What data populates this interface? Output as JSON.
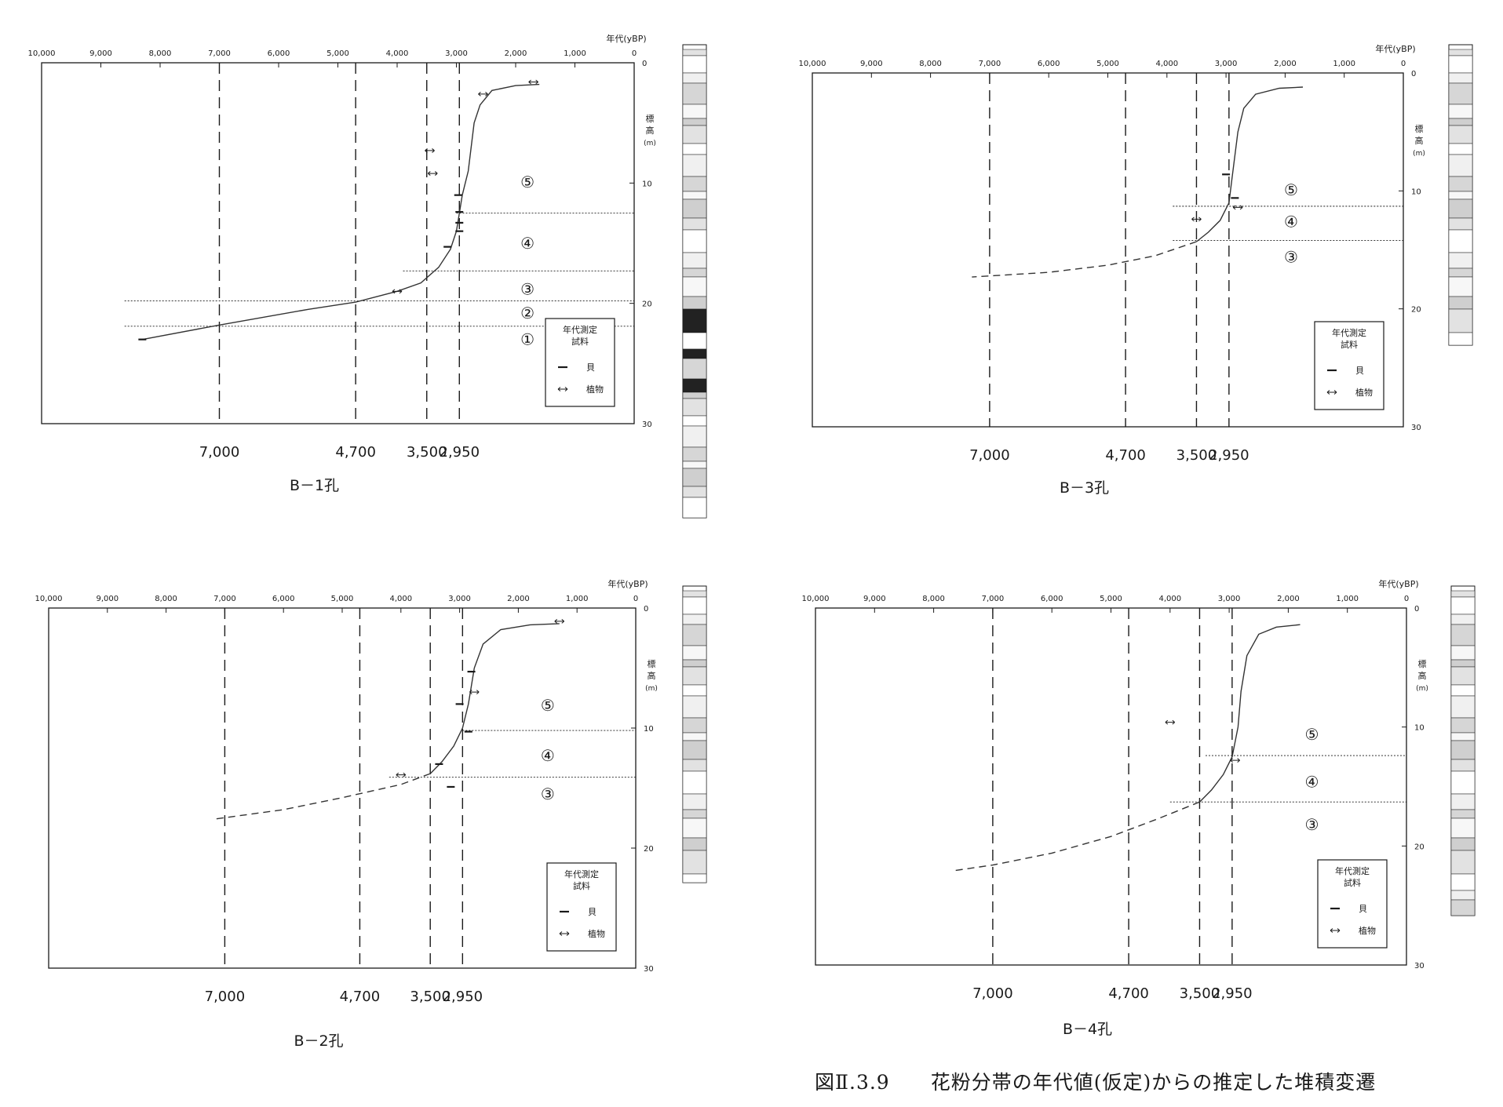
{
  "caption": "図Ⅱ.3.9　　花粉分帯の年代値(仮定)からの推定した堆積変遷",
  "colors": {
    "ink": "#1a1a1a",
    "background": "#ffffff"
  },
  "chart_data": [
    {
      "type": "line",
      "title": "B－1孔",
      "xlabel": "年代(yBP)",
      "ylabel": "標高(m)",
      "xlim": [
        10000,
        0
      ],
      "ylim": [
        0,
        30
      ],
      "x_ticks": [
        10000,
        9000,
        8000,
        7000,
        6000,
        5000,
        4000,
        3000,
        2000,
        1000,
        0
      ],
      "x_tick_labels": [
        "10,000",
        "9,000",
        "8,000",
        "7,000",
        "6,000",
        "5,000",
        "4,000",
        "3,000",
        "2,000",
        "1,000",
        "0"
      ],
      "y_ticks": [
        0,
        10,
        20,
        30
      ],
      "y_tick_labels": [
        "0",
        "10",
        "20",
        "30"
      ],
      "boundary_ages": [
        7000,
        4700,
        3500,
        2950
      ],
      "boundary_labels": [
        "7,000",
        "4,700",
        "3,500",
        "2,950"
      ],
      "curve": {
        "solid": [
          [
            1600,
            1.8
          ],
          [
            2000,
            1.9
          ],
          [
            2400,
            2.3
          ],
          [
            2600,
            3.5
          ],
          [
            2700,
            5
          ],
          [
            2800,
            9
          ],
          [
            2900,
            11
          ],
          [
            2950,
            12.5
          ],
          [
            3000,
            14
          ],
          [
            3100,
            15.5
          ],
          [
            3300,
            17
          ],
          [
            3600,
            18.3
          ],
          [
            4000,
            19
          ],
          [
            4700,
            19.9
          ],
          [
            5500,
            20.5
          ],
          [
            7000,
            21.8
          ],
          [
            8300,
            23
          ]
        ],
        "dashed": []
      },
      "samples": [
        {
          "kind": "shell",
          "age": 2970,
          "depth": 11
        },
        {
          "kind": "shell",
          "age": 2950,
          "depth": 12.4
        },
        {
          "kind": "shell",
          "age": 2950,
          "depth": 13.3
        },
        {
          "kind": "shell",
          "age": 2950,
          "depth": 14
        },
        {
          "kind": "shell",
          "age": 3150,
          "depth": 15.3
        },
        {
          "kind": "shell",
          "age": 8300,
          "depth": 23
        },
        {
          "kind": "plant",
          "age": 1700,
          "depth": 1.6
        },
        {
          "kind": "plant",
          "age": 2550,
          "depth": 2.6
        },
        {
          "kind": "plant",
          "age": 3450,
          "depth": 7.3
        },
        {
          "kind": "plant",
          "age": 3400,
          "depth": 9.2
        },
        {
          "kind": "plant",
          "age": 4000,
          "depth": 19
        }
      ],
      "zones": [
        {
          "label": "⑤",
          "depth": 9.9,
          "age": 1800,
          "line_depth": 12.5,
          "line_start": 3000
        },
        {
          "label": "④",
          "depth": 15,
          "age": 1800,
          "line_depth": 17.3,
          "line_start": 3900
        },
        {
          "label": "③",
          "depth": 18.8,
          "age": 1800,
          "line_depth": 19.8,
          "line_start": 8600
        },
        {
          "label": "②",
          "depth": 20.8,
          "age": 1800,
          "line_depth": 21.9,
          "line_start": 8600
        },
        {
          "label": "①",
          "depth": 23,
          "age": 1800
        }
      ],
      "legend": {
        "title": "年代測定\n試料",
        "shell": "貝",
        "plant": "植物",
        "position": "lower-right"
      }
    },
    {
      "type": "line",
      "title": "B－3孔",
      "xlabel": "年代(yBP)",
      "ylabel": "標高(m)",
      "xlim": [
        10000,
        0
      ],
      "ylim": [
        0,
        30
      ],
      "x_ticks": [
        10000,
        9000,
        8000,
        7000,
        6000,
        5000,
        4000,
        3000,
        2000,
        1000,
        0
      ],
      "x_tick_labels": [
        "10,000",
        "9,000",
        "8,000",
        "7,000",
        "6,000",
        "5,000",
        "4,000",
        "3,000",
        "2,000",
        "1,000",
        "0"
      ],
      "y_ticks": [
        0,
        10,
        20,
        30
      ],
      "y_tick_labels": [
        "0",
        "10",
        "20",
        "30"
      ],
      "boundary_ages": [
        7000,
        4700,
        3500,
        2950
      ],
      "boundary_labels": [
        "7,000",
        "4,700",
        "3,500",
        "2,950"
      ],
      "curve": {
        "solid": [
          [
            1700,
            1.2
          ],
          [
            2100,
            1.3
          ],
          [
            2500,
            1.8
          ],
          [
            2700,
            3
          ],
          [
            2800,
            5
          ],
          [
            2900,
            9
          ],
          [
            2950,
            11
          ],
          [
            3100,
            12.5
          ],
          [
            3300,
            13.5
          ],
          [
            3500,
            14.3
          ]
        ],
        "dashed": [
          [
            3500,
            14.3
          ],
          [
            4200,
            15.5
          ],
          [
            5000,
            16.3
          ],
          [
            6000,
            16.9
          ],
          [
            7300,
            17.3
          ]
        ]
      },
      "samples": [
        {
          "kind": "shell",
          "age": 3000,
          "depth": 8.6
        },
        {
          "kind": "shell",
          "age": 2850,
          "depth": 10.6
        },
        {
          "kind": "plant",
          "age": 2800,
          "depth": 11.4
        },
        {
          "kind": "plant",
          "age": 3500,
          "depth": 12.4
        }
      ],
      "zones": [
        {
          "label": "⑤",
          "depth": 9.9,
          "age": 1900,
          "line_depth": 11.3,
          "line_start": 3900
        },
        {
          "label": "④",
          "depth": 12.6,
          "age": 1900,
          "line_depth": 14.2,
          "line_start": 3900
        },
        {
          "label": "③",
          "depth": 15.6,
          "age": 1900
        }
      ],
      "legend": {
        "title": "年代測定\n試料",
        "shell": "貝",
        "plant": "植物",
        "position": "lower-right"
      }
    },
    {
      "type": "line",
      "title": "B－2孔",
      "xlabel": "年代(yBP)",
      "ylabel": "標高(m)",
      "xlim": [
        10000,
        0
      ],
      "ylim": [
        0,
        30
      ],
      "x_ticks": [
        10000,
        9000,
        8000,
        7000,
        6000,
        5000,
        4000,
        3000,
        2000,
        1000,
        0
      ],
      "x_tick_labels": [
        "10,000",
        "9,000",
        "8,000",
        "7,000",
        "6,000",
        "5,000",
        "4,000",
        "3,000",
        "2,000",
        "1,000",
        "0"
      ],
      "y_ticks": [
        0,
        10,
        20,
        30
      ],
      "y_tick_labels": [
        "0",
        "10",
        "20",
        "30"
      ],
      "boundary_ages": [
        7000,
        4700,
        3500,
        2950
      ],
      "boundary_labels": [
        "7,000",
        "4,700",
        "3,500",
        "2,950"
      ],
      "curve": {
        "solid": [
          [
            1300,
            1.3
          ],
          [
            1800,
            1.4
          ],
          [
            2300,
            1.8
          ],
          [
            2600,
            3
          ],
          [
            2750,
            5
          ],
          [
            2850,
            8
          ],
          [
            2950,
            10
          ],
          [
            3100,
            11.5
          ],
          [
            3300,
            12.8
          ],
          [
            3500,
            13.8
          ]
        ],
        "dashed": [
          [
            3500,
            13.8
          ],
          [
            4000,
            14.7
          ],
          [
            5000,
            15.8
          ],
          [
            6000,
            16.8
          ],
          [
            7200,
            17.6
          ]
        ]
      },
      "samples": [
        {
          "kind": "shell",
          "age": 2800,
          "depth": 5.3
        },
        {
          "kind": "shell",
          "age": 3000,
          "depth": 8
        },
        {
          "kind": "shell",
          "age": 2850,
          "depth": 10.3
        },
        {
          "kind": "shell",
          "age": 3350,
          "depth": 13
        },
        {
          "kind": "shell",
          "age": 3150,
          "depth": 14.9
        },
        {
          "kind": "plant",
          "age": 1300,
          "depth": 1.1
        },
        {
          "kind": "plant",
          "age": 2750,
          "depth": 7
        },
        {
          "kind": "plant",
          "age": 4000,
          "depth": 13.9
        }
      ],
      "zones": [
        {
          "label": "⑤",
          "depth": 8.1,
          "age": 1500,
          "line_depth": 10.2,
          "line_start": 2950
        },
        {
          "label": "④",
          "depth": 12.3,
          "age": 1500,
          "line_depth": 14.1,
          "line_start": 4200
        },
        {
          "label": "③",
          "depth": 15.5,
          "age": 1500
        }
      ],
      "legend": {
        "title": "年代測定\n試料",
        "shell": "貝",
        "plant": "植物",
        "position": "lower-right"
      }
    },
    {
      "type": "line",
      "title": "B－4孔",
      "xlabel": "年代(yBP)",
      "ylabel": "標高(m)",
      "xlim": [
        10000,
        0
      ],
      "ylim": [
        0,
        30
      ],
      "x_ticks": [
        10000,
        9000,
        8000,
        7000,
        6000,
        5000,
        4000,
        3000,
        2000,
        1000,
        0
      ],
      "x_tick_labels": [
        "10,000",
        "9,000",
        "8,000",
        "7,000",
        "6,000",
        "5,000",
        "4,000",
        "3,000",
        "2,000",
        "1,000",
        "0"
      ],
      "y_ticks": [
        0,
        10,
        20,
        30
      ],
      "y_tick_labels": [
        "0",
        "10",
        "20",
        "30"
      ],
      "boundary_ages": [
        7000,
        4700,
        3500,
        2950
      ],
      "boundary_labels": [
        "7,000",
        "4,700",
        "3,500",
        "2,950"
      ],
      "curve": {
        "solid": [
          [
            1800,
            1.4
          ],
          [
            2200,
            1.6
          ],
          [
            2500,
            2.2
          ],
          [
            2700,
            4
          ],
          [
            2800,
            7
          ],
          [
            2850,
            10
          ],
          [
            2950,
            12.5
          ],
          [
            3100,
            14
          ],
          [
            3300,
            15.3
          ],
          [
            3500,
            16.3
          ]
        ],
        "dashed": [
          [
            3500,
            16.3
          ],
          [
            4200,
            17.7
          ],
          [
            5000,
            19.2
          ],
          [
            6000,
            20.6
          ],
          [
            7000,
            21.6
          ],
          [
            7700,
            22.1
          ]
        ]
      },
      "samples": [
        {
          "kind": "plant",
          "age": 2900,
          "depth": 12.8
        },
        {
          "kind": "plant",
          "age": 4000,
          "depth": 9.6
        }
      ],
      "zones": [
        {
          "label": "⑤",
          "depth": 10.6,
          "age": 1600,
          "line_depth": 12.4,
          "line_start": 3400
        },
        {
          "label": "④",
          "depth": 14.6,
          "age": 1600,
          "line_depth": 16.3,
          "line_start": 4000
        },
        {
          "label": "③",
          "depth": 18.2,
          "age": 1600
        }
      ],
      "legend": {
        "title": "年代測定\n試料",
        "shell": "貝",
        "plant": "植物",
        "position": "lower-right"
      }
    }
  ]
}
